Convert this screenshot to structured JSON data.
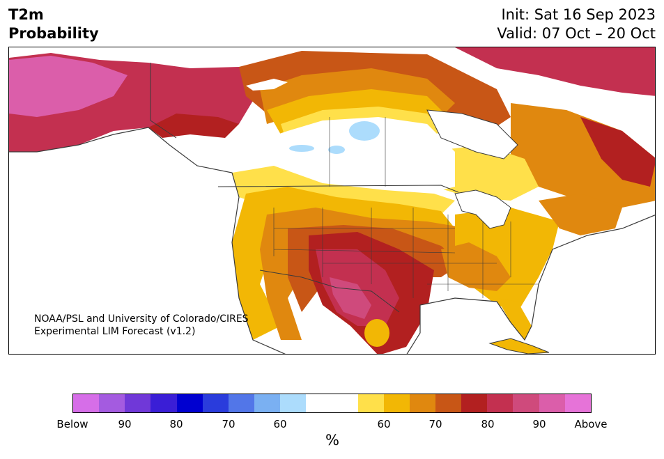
{
  "header": {
    "variable": "T2m",
    "product": "Probability",
    "init": "Init: Sat 16 Sep 2023",
    "valid": "Valid: 07 Oct – 20 Oct"
  },
  "credit": {
    "line1": "NOAA/PSL and University of Colorado/CIRES",
    "line2": "Experimental LIM Forecast (v1.2)"
  },
  "colorbar": {
    "colors": [
      "#d66ee8",
      "#a45be0",
      "#7038d8",
      "#3a1ed6",
      "#0000d0",
      "#2a3cdc",
      "#5276e8",
      "#7ab0f2",
      "#acdcfc",
      "#ffffff",
      "#ffffff",
      "#ffe04a",
      "#f2b705",
      "#e0880f",
      "#c85616",
      "#b22020",
      "#c33050",
      "#cf4a7c",
      "#db5eaa",
      "#e673d8"
    ],
    "tick_labels": [
      "Below",
      "90",
      "80",
      "70",
      "60",
      "60",
      "70",
      "80",
      "90",
      "Above"
    ],
    "units": "%"
  },
  "palette": {
    "coast": "#3a3a3a",
    "water": "#ffffff"
  }
}
